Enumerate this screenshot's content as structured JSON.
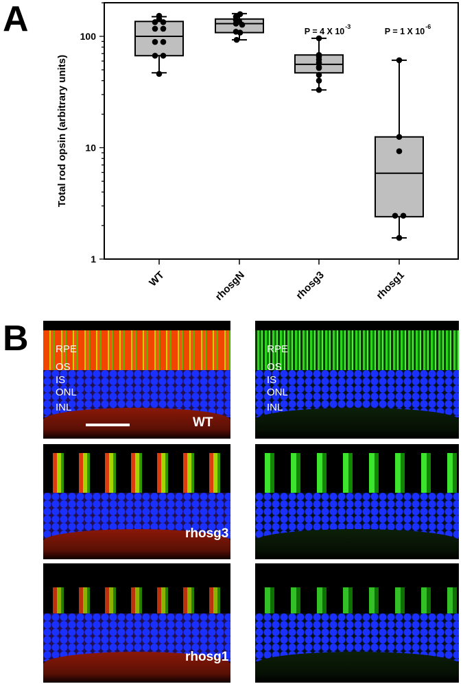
{
  "panels": {
    "a": "A",
    "b": "B"
  },
  "chart_data": {
    "type": "box",
    "ylabel": "Total rod opsin (arbitrary units)",
    "xlabel": "",
    "yscale": "log",
    "ylim": [
      1,
      200
    ],
    "yticks": [
      1,
      10,
      100
    ],
    "ytick_labels": [
      "1",
      "10",
      "100"
    ],
    "categories": [
      "WT",
      "rhosgN",
      "rhosg3",
      "rhosg1"
    ],
    "series": [
      {
        "name": "WT",
        "whisker_low": 47,
        "q1": 67,
        "median": 100,
        "q3": 136,
        "whisker_high": 150,
        "points": [
          153,
          143,
          134,
          134,
          117,
          117,
          89,
          89,
          67,
          67,
          46
        ],
        "annotation": ""
      },
      {
        "name": "rhosgN",
        "whisker_low": 93,
        "q1": 108,
        "median": 130,
        "q3": 143,
        "whisker_high": 160,
        "points": [
          158,
          150,
          140,
          135,
          130,
          127,
          110,
          108,
          93
        ],
        "annotation": ""
      },
      {
        "name": "rhosg3",
        "whisker_low": 33,
        "q1": 47,
        "median": 56,
        "q3": 68,
        "whisker_high": 96,
        "points": [
          96,
          68,
          66,
          62,
          58,
          53,
          52,
          45,
          40,
          33
        ],
        "annotation": "P = 4 X 10",
        "annotation_exp": "-3"
      },
      {
        "name": "rhosg1",
        "whisker_low": 1.55,
        "q1": 2.4,
        "median": 5.9,
        "q3": 12.5,
        "whisker_high": 61,
        "points": [
          61,
          12.5,
          9.3,
          2.45,
          2.45,
          1.55
        ],
        "annotation": "P = 1 X 10",
        "annotation_exp": "-6"
      }
    ],
    "box_color": "#bfbfbf",
    "grid": false
  },
  "micrographs": {
    "layer_labels": [
      "RPE",
      "OS",
      "IS",
      "ONL",
      "INL"
    ],
    "rows": [
      {
        "genotype": "WT"
      },
      {
        "genotype": "rhosg3"
      },
      {
        "genotype": "rhosg1"
      }
    ]
  }
}
